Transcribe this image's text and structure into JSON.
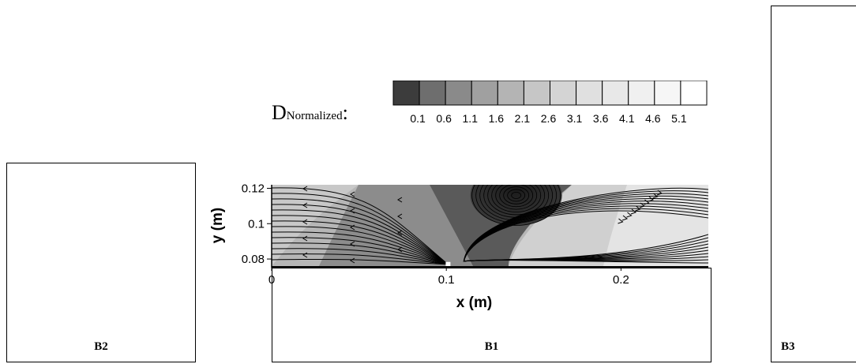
{
  "panels": [
    {
      "id": "B2",
      "label": "B2"
    },
    {
      "id": "B1",
      "label": "B1"
    },
    {
      "id": "B3",
      "label": "B3"
    }
  ],
  "legend": {
    "title_main": "D",
    "title_sub": "Normalized",
    "title_suffix": ":",
    "levels": [
      "0.1",
      "0.6",
      "1.1",
      "1.6",
      "2.1",
      "2.6",
      "3.1",
      "3.6",
      "4.1",
      "4.6",
      "5.1"
    ],
    "colors": [
      "#3c3c3c",
      "#6e6e6e",
      "#8a8a8a",
      "#a0a0a0",
      "#b4b4b4",
      "#c6c6c6",
      "#d4d4d4",
      "#e0e0e0",
      "#e8e8e8",
      "#f0f0f0",
      "#f6f6f6",
      "#ffffff"
    ]
  },
  "plot": {
    "xlabel": "x (m)",
    "ylabel": "y (m)",
    "xticks": [
      "0",
      "0.1",
      "0.2"
    ],
    "yticks": [
      "0.08",
      "0.1",
      "0.12"
    ],
    "xlim": [
      0,
      0.25
    ],
    "ylim": [
      0.076,
      0.122
    ],
    "source_point": [
      0.101,
      0.077
    ]
  }
}
